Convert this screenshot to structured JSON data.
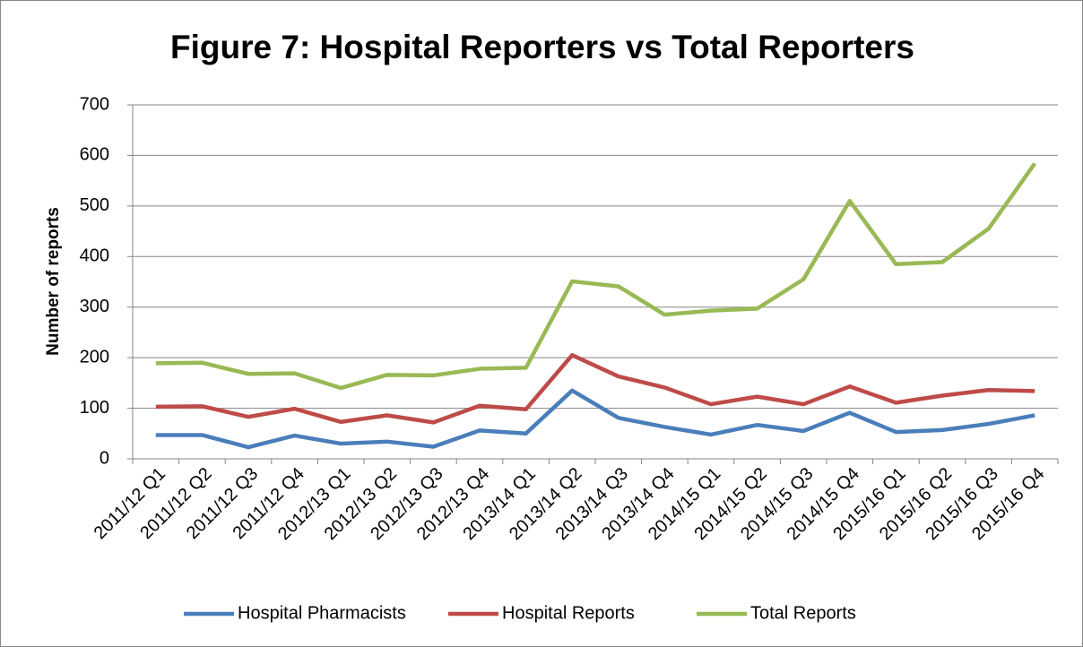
{
  "chart_data": {
    "type": "line",
    "title": "Figure 7: Hospital Reporters vs Total Reporters",
    "y_label": "Number of reports",
    "categories": [
      "2011/12 Q1",
      "2011/12 Q2",
      "2011/12 Q3",
      "2011/12 Q4",
      "2012/13 Q1",
      "2012/13 Q2",
      "2012/13 Q3",
      "2012/13 Q4",
      "2013/14 Q1",
      "2013/14 Q2",
      "2013/14 Q3",
      "2013/14 Q4",
      "2014/15 Q1",
      "2014/15 Q2",
      "2014/15 Q3",
      "2014/15 Q4",
      "2015/16 Q1",
      "2015/16 Q2",
      "2015/16 Q3",
      "2015/16 Q4"
    ],
    "series": [
      {
        "name": "Hospital Pharmacists",
        "color": "#4a7ebb",
        "values": [
          47,
          47,
          23,
          46,
          30,
          34,
          24,
          56,
          50,
          135,
          81,
          63,
          48,
          67,
          55,
          91,
          53,
          57,
          69,
          86
        ]
      },
      {
        "name": "Hospital Reports",
        "color": "#be4b48",
        "values": [
          103,
          104,
          83,
          99,
          73,
          86,
          72,
          105,
          98,
          205,
          163,
          141,
          108,
          123,
          108,
          143,
          111,
          125,
          136,
          134
        ]
      },
      {
        "name": "Total Reports",
        "color": "#98b954",
        "values": [
          189,
          190,
          168,
          169,
          140,
          166,
          165,
          178,
          180,
          351,
          341,
          285,
          293,
          297,
          355,
          510,
          385,
          389,
          455,
          584
        ]
      }
    ],
    "ylim": [
      0,
      700
    ],
    "yticks": [
      0,
      100,
      200,
      300,
      400,
      500,
      600,
      700
    ],
    "grid": true,
    "legend": "bottom"
  }
}
